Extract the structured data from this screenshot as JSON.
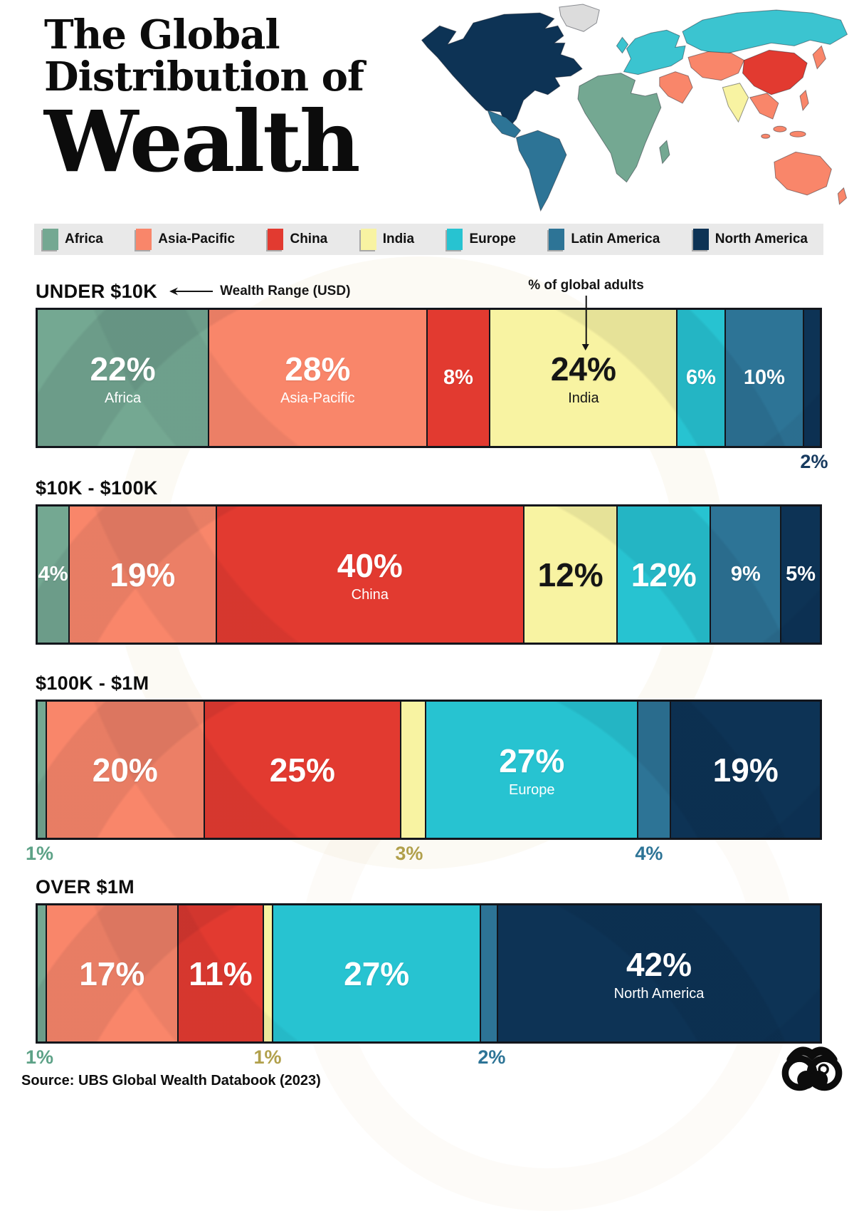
{
  "title": {
    "line1": "The Global",
    "line2": "Distribution of",
    "line3": "Wealth"
  },
  "legend": {
    "items": [
      {
        "key": "africa",
        "label": "Africa",
        "color": "#74a892"
      },
      {
        "key": "asia-pacific",
        "label": "Asia-Pacific",
        "color": "#f9866a"
      },
      {
        "key": "china",
        "label": "China",
        "color": "#e23a30"
      },
      {
        "key": "india",
        "label": "India",
        "color": "#f8f3a2"
      },
      {
        "key": "europe",
        "label": "Europe",
        "color": "#27c3d1"
      },
      {
        "key": "latin-america",
        "label": "Latin America",
        "color": "#2d7496"
      },
      {
        "key": "north-america",
        "label": "North America",
        "color": "#0d3355"
      }
    ]
  },
  "map": {
    "region_colors": {
      "africa": "#74a892",
      "asia_pacific": "#f9866a",
      "china": "#e23a30",
      "india": "#f8f3a2",
      "europe": "#3bc4d0",
      "latin_america": "#2d7496",
      "north_america": "#0d3355",
      "greenland": "#dcdcdc"
    }
  },
  "annotations": {
    "wealth_range_label": "Wealth Range (USD)",
    "adults_label": "% of global adults"
  },
  "region_styles": {
    "Africa": {
      "color": "#74a892",
      "text_color": "#ffffff",
      "below_color": "#5da287"
    },
    "Asia-Pacific": {
      "color": "#f9866a",
      "text_color": "#ffffff"
    },
    "China": {
      "color": "#e23a30",
      "text_color": "#ffffff"
    },
    "India": {
      "color": "#f8f3a2",
      "text_color": "#151515",
      "below_color": "#b1a04b"
    },
    "Europe": {
      "color": "#27c3d1",
      "text_color": "#ffffff"
    },
    "Latin America": {
      "color": "#2d7496",
      "text_color": "#ffffff",
      "below_color": "#2d7496"
    },
    "North America": {
      "color": "#0d3355",
      "text_color": "#ffffff",
      "below_color": "#173a5f"
    }
  },
  "charts": [
    {
      "label": "UNDER $10K",
      "show_annotations": true,
      "segments": [
        {
          "region": "Africa",
          "value": 22,
          "display": "22%",
          "sublabel": "Africa"
        },
        {
          "region": "Asia-Pacific",
          "value": 28,
          "display": "28%",
          "sublabel": "Asia-Pacific"
        },
        {
          "region": "China",
          "value": 8,
          "display": "8%"
        },
        {
          "region": "India",
          "value": 24,
          "display": "24%",
          "sublabel": "India"
        },
        {
          "region": "Europe",
          "value": 6,
          "display": "6%"
        },
        {
          "region": "Latin America",
          "value": 10,
          "display": "10%"
        },
        {
          "region": "North America",
          "value": 2,
          "display": "2%",
          "below": true
        }
      ]
    },
    {
      "label": "$10K - $100K",
      "show_annotations": false,
      "segments": [
        {
          "region": "Africa",
          "value": 4,
          "display": "4%"
        },
        {
          "region": "Asia-Pacific",
          "value": 19,
          "display": "19%"
        },
        {
          "region": "China",
          "value": 40,
          "display": "40%",
          "sublabel": "China"
        },
        {
          "region": "India",
          "value": 12,
          "display": "12%"
        },
        {
          "region": "Europe",
          "value": 12,
          "display": "12%"
        },
        {
          "region": "Latin America",
          "value": 9,
          "display": "9%"
        },
        {
          "region": "North America",
          "value": 5,
          "display": "5%"
        }
      ]
    },
    {
      "label": "$100K - $1M",
      "show_annotations": false,
      "segments": [
        {
          "region": "Africa",
          "value": 1,
          "display": "1%",
          "below": true
        },
        {
          "region": "Asia-Pacific",
          "value": 20,
          "display": "20%"
        },
        {
          "region": "China",
          "value": 25,
          "display": "25%"
        },
        {
          "region": "India",
          "value": 3,
          "display": "3%",
          "below": true
        },
        {
          "region": "Europe",
          "value": 27,
          "display": "27%",
          "sublabel": "Europe"
        },
        {
          "region": "Latin America",
          "value": 4,
          "display": "4%",
          "below": true
        },
        {
          "region": "North America",
          "value": 19,
          "display": "19%"
        }
      ]
    },
    {
      "label": "OVER $1M",
      "show_annotations": false,
      "segments": [
        {
          "region": "Africa",
          "value": 1,
          "display": "1%",
          "below": true
        },
        {
          "region": "Asia-Pacific",
          "value": 17,
          "display": "17%"
        },
        {
          "region": "China",
          "value": 11,
          "display": "11%"
        },
        {
          "region": "India",
          "value": 1,
          "display": "1%",
          "below": true
        },
        {
          "region": "Europe",
          "value": 27,
          "display": "27%"
        },
        {
          "region": "Latin America",
          "value": 2,
          "display": "2%",
          "below": true
        },
        {
          "region": "North America",
          "value": 42,
          "display": "42%",
          "sublabel": "North America"
        }
      ]
    }
  ],
  "chart_data": {
    "type": "bar",
    "stacked": true,
    "title": "The Global Distribution of Wealth",
    "xlabel": "Wealth Range (USD)",
    "ylabel": "% of global adults",
    "categories": [
      "Under $10K",
      "$10K - $100K",
      "$100K - $1M",
      "Over $1M"
    ],
    "series": [
      {
        "name": "Africa",
        "values": [
          22,
          4,
          1,
          1
        ]
      },
      {
        "name": "Asia-Pacific",
        "values": [
          28,
          19,
          20,
          17
        ]
      },
      {
        "name": "China",
        "values": [
          8,
          40,
          25,
          11
        ]
      },
      {
        "name": "India",
        "values": [
          24,
          12,
          3,
          1
        ]
      },
      {
        "name": "Europe",
        "values": [
          6,
          12,
          27,
          27
        ]
      },
      {
        "name": "Latin America",
        "values": [
          10,
          9,
          4,
          2
        ]
      },
      {
        "name": "North America",
        "values": [
          2,
          5,
          19,
          42
        ]
      }
    ],
    "legend_position": "top",
    "grid": false
  },
  "source": {
    "text": "Source: UBS Global Wealth Databook (2023)"
  },
  "logo": {
    "name": "voronoi-binoculars"
  }
}
